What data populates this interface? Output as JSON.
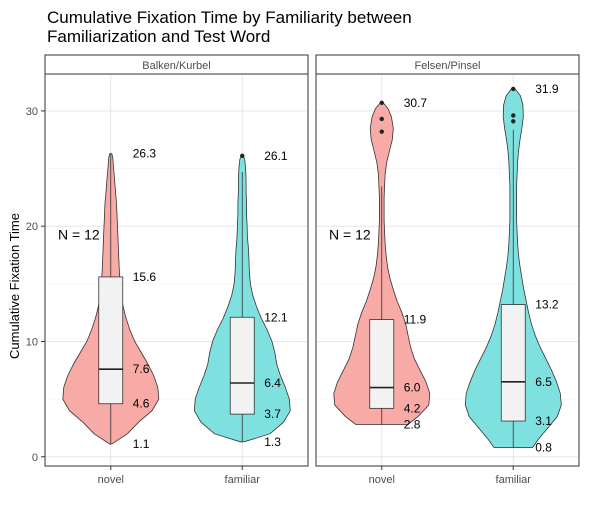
{
  "chart_data": {
    "type": "violin",
    "title_line1": "Cumulative Fixation Time by Familiarity between",
    "title_line2": "Familiarization and Test Word",
    "ylabel": "Cumulative Fixation Time",
    "xlabel": "",
    "ylim": [
      -0.8,
      33.2
    ],
    "yticks": [
      "0",
      "10",
      "20",
      "30"
    ],
    "categories": [
      "novel",
      "familiar"
    ],
    "fill_colors": {
      "novel": "#f8aaa6",
      "familiar": "#7fe0e0"
    },
    "panels": [
      {
        "name": "Balken/Kurbel",
        "n_label": "N =  12",
        "groups": [
          {
            "category": "novel",
            "min": 1.1,
            "q1": 4.6,
            "median": 7.6,
            "q3": 15.6,
            "max": 26.3,
            "outliers": [],
            "labels": [
              "26.3",
              "15.6",
              "7.6",
              "4.6",
              "1.1"
            ],
            "violin": [
              [
                1.1,
                0.02
              ],
              [
                2,
                0.35
              ],
              [
                3,
                0.58
              ],
              [
                4,
                0.86
              ],
              [
                5,
                1.0
              ],
              [
                6,
                0.98
              ],
              [
                7,
                0.9
              ],
              [
                8,
                0.78
              ],
              [
                9,
                0.64
              ],
              [
                10,
                0.5
              ],
              [
                11,
                0.4
              ],
              [
                12,
                0.32
              ],
              [
                13,
                0.26
              ],
              [
                14,
                0.22
              ],
              [
                15,
                0.2
              ],
              [
                16,
                0.18
              ],
              [
                17,
                0.17
              ],
              [
                18,
                0.16
              ],
              [
                19,
                0.15
              ],
              [
                20,
                0.14
              ],
              [
                21,
                0.13
              ],
              [
                22,
                0.12
              ],
              [
                23,
                0.1
              ],
              [
                24,
                0.08
              ],
              [
                25,
                0.06
              ],
              [
                26,
                0.04
              ],
              [
                26.3,
                0.02
              ]
            ]
          },
          {
            "category": "familiar",
            "min": 1.3,
            "q1": 3.7,
            "median": 6.4,
            "q3": 12.1,
            "max": 26.1,
            "outliers": [
              26.1
            ],
            "labels": [
              "26.1",
              "12.1",
              "6.4",
              "3.7",
              "1.3"
            ],
            "violin": [
              [
                1.3,
                0.04
              ],
              [
                2,
                0.58
              ],
              [
                3,
                0.86
              ],
              [
                4,
                1.0
              ],
              [
                5,
                0.98
              ],
              [
                6,
                0.9
              ],
              [
                7,
                0.8
              ],
              [
                8,
                0.72
              ],
              [
                9,
                0.68
              ],
              [
                10,
                0.62
              ],
              [
                11,
                0.52
              ],
              [
                12,
                0.4
              ],
              [
                13,
                0.3
              ],
              [
                14,
                0.22
              ],
              [
                15,
                0.17
              ],
              [
                16,
                0.15
              ],
              [
                17,
                0.14
              ],
              [
                18,
                0.13
              ],
              [
                19,
                0.11
              ],
              [
                20,
                0.1
              ],
              [
                21,
                0.09
              ],
              [
                22,
                0.09
              ],
              [
                23,
                0.08
              ],
              [
                24,
                0.08
              ],
              [
                25,
                0.07
              ],
              [
                25.8,
                0.05
              ],
              [
                26.1,
                0.02
              ]
            ]
          }
        ]
      },
      {
        "name": "Felsen/Pinsel",
        "n_label": "N =  12",
        "groups": [
          {
            "category": "novel",
            "min": 2.8,
            "q1": 4.2,
            "median": 6.0,
            "q3": 11.9,
            "max": 30.7,
            "outliers": [
              30.7,
              29.3,
              28.2
            ],
            "labels": [
              "30.7",
              "11.9",
              "6.0",
              "4.2",
              "2.8"
            ],
            "violin": [
              [
                2.8,
                0.54
              ],
              [
                3.5,
                0.76
              ],
              [
                4.5,
                0.98
              ],
              [
                5.5,
                1.0
              ],
              [
                6.5,
                0.92
              ],
              [
                7.5,
                0.8
              ],
              [
                8.5,
                0.68
              ],
              [
                9.5,
                0.6
              ],
              [
                10.5,
                0.55
              ],
              [
                11.5,
                0.5
              ],
              [
                12.5,
                0.42
              ],
              [
                13.5,
                0.32
              ],
              [
                14.5,
                0.24
              ],
              [
                15.5,
                0.17
              ],
              [
                16.5,
                0.12
              ],
              [
                17.5,
                0.09
              ],
              [
                18.5,
                0.07
              ],
              [
                19.5,
                0.06
              ],
              [
                20.5,
                0.05
              ],
              [
                21.5,
                0.05
              ],
              [
                22.5,
                0.05
              ],
              [
                23.5,
                0.06
              ],
              [
                24.5,
                0.07
              ],
              [
                25.5,
                0.1
              ],
              [
                26.5,
                0.16
              ],
              [
                27.5,
                0.22
              ],
              [
                28.5,
                0.24
              ],
              [
                29.5,
                0.2
              ],
              [
                30.2,
                0.13
              ],
              [
                30.7,
                0.03
              ]
            ]
          },
          {
            "category": "familiar",
            "min": 0.8,
            "q1": 3.1,
            "median": 6.5,
            "q3": 13.2,
            "max": 31.9,
            "outliers": [
              31.9,
              29.6,
              29.1
            ],
            "labels": [
              "31.9",
              "13.2",
              "6.5",
              "3.1",
              "0.8"
            ],
            "violin": [
              [
                0.8,
                0.4
              ],
              [
                1.5,
                0.52
              ],
              [
                2.5,
                0.72
              ],
              [
                3.5,
                0.92
              ],
              [
                4.5,
                1.0
              ],
              [
                5.5,
                0.98
              ],
              [
                6.5,
                0.9
              ],
              [
                7.5,
                0.8
              ],
              [
                8.5,
                0.68
              ],
              [
                9.5,
                0.56
              ],
              [
                10.5,
                0.46
              ],
              [
                11.5,
                0.38
              ],
              [
                12.5,
                0.32
              ],
              [
                13.5,
                0.27
              ],
              [
                14.5,
                0.22
              ],
              [
                15.5,
                0.18
              ],
              [
                16.5,
                0.14
              ],
              [
                17.5,
                0.11
              ],
              [
                18.5,
                0.09
              ],
              [
                19.5,
                0.08
              ],
              [
                20.5,
                0.07
              ],
              [
                21.5,
                0.07
              ],
              [
                22.5,
                0.07
              ],
              [
                23.5,
                0.07
              ],
              [
                24.5,
                0.08
              ],
              [
                25.5,
                0.09
              ],
              [
                26.5,
                0.11
              ],
              [
                27.5,
                0.14
              ],
              [
                28.5,
                0.18
              ],
              [
                29.5,
                0.21
              ],
              [
                30.5,
                0.2
              ],
              [
                31.3,
                0.15
              ],
              [
                31.9,
                0.04
              ]
            ]
          }
        ]
      }
    ]
  }
}
